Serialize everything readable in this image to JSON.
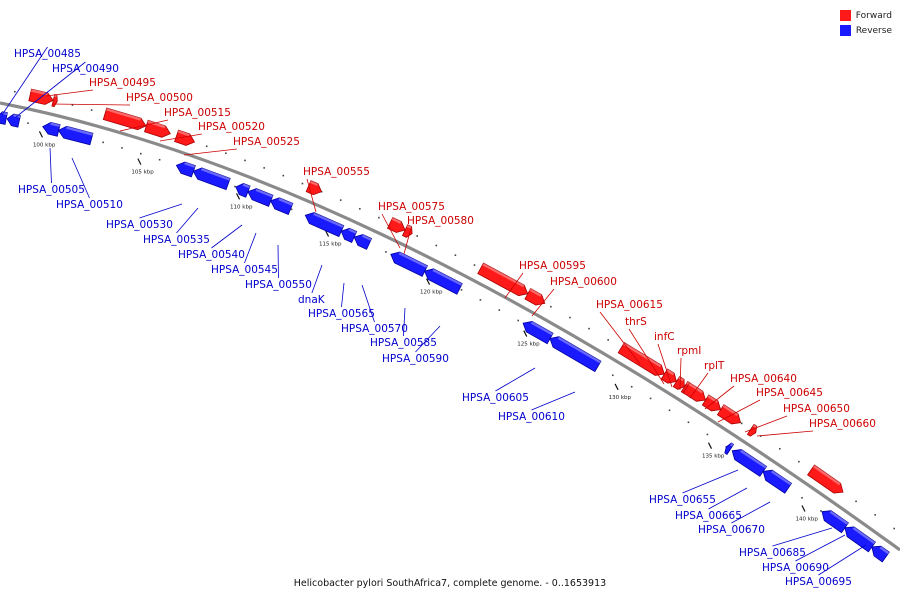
{
  "colors": {
    "forward": "#ff1a1a",
    "forward_dark": "#a80000",
    "reverse": "#1a1aff",
    "reverse_dark": "#0000a0",
    "backbone": "#8a8a8a"
  },
  "legend": {
    "forward_label": "Forward",
    "reverse_label": "Reverse"
  },
  "caption": "Helicobacter pylori SouthAfrica7, complete genome. - 0..1653913",
  "axis_ticks": [
    "100 kbp",
    "105 kbp",
    "110 kbp",
    "115 kbp",
    "120 kbp",
    "125 kbp",
    "130 kbp",
    "135 kbp",
    "140 kbp"
  ],
  "genes": [
    {
      "name": "HPSA_00485",
      "strand": "reverse"
    },
    {
      "name": "HPSA_00490",
      "strand": "reverse"
    },
    {
      "name": "HPSA_00495",
      "strand": "forward"
    },
    {
      "name": "HPSA_00500",
      "strand": "forward"
    },
    {
      "name": "HPSA_00515",
      "strand": "forward"
    },
    {
      "name": "HPSA_00520",
      "strand": "forward"
    },
    {
      "name": "HPSA_00525",
      "strand": "forward"
    },
    {
      "name": "HPSA_00505",
      "strand": "reverse"
    },
    {
      "name": "HPSA_00510",
      "strand": "reverse"
    },
    {
      "name": "HPSA_00555",
      "strand": "forward"
    },
    {
      "name": "HPSA_00530",
      "strand": "reverse"
    },
    {
      "name": "HPSA_00535",
      "strand": "reverse"
    },
    {
      "name": "HPSA_00575",
      "strand": "forward"
    },
    {
      "name": "HPSA_00580",
      "strand": "forward"
    },
    {
      "name": "HPSA_00540",
      "strand": "reverse"
    },
    {
      "name": "HPSA_00545",
      "strand": "reverse"
    },
    {
      "name": "HPSA_00550",
      "strand": "reverse"
    },
    {
      "name": "HPSA_00595",
      "strand": "forward"
    },
    {
      "name": "dnaK",
      "strand": "reverse"
    },
    {
      "name": "HPSA_00600",
      "strand": "forward"
    },
    {
      "name": "HPSA_00565",
      "strand": "reverse"
    },
    {
      "name": "HPSA_00570",
      "strand": "reverse"
    },
    {
      "name": "HPSA_00615",
      "strand": "forward"
    },
    {
      "name": "HPSA_00585",
      "strand": "reverse"
    },
    {
      "name": "thrS",
      "strand": "forward"
    },
    {
      "name": "HPSA_00590",
      "strand": "reverse"
    },
    {
      "name": "infC",
      "strand": "forward"
    },
    {
      "name": "rpmI",
      "strand": "forward"
    },
    {
      "name": "rplT",
      "strand": "forward"
    },
    {
      "name": "HPSA_00640",
      "strand": "forward"
    },
    {
      "name": "HPSA_00605",
      "strand": "reverse"
    },
    {
      "name": "HPSA_00645",
      "strand": "forward"
    },
    {
      "name": "HPSA_00610",
      "strand": "reverse"
    },
    {
      "name": "HPSA_00650",
      "strand": "forward"
    },
    {
      "name": "HPSA_00660",
      "strand": "forward"
    },
    {
      "name": "HPSA_00655",
      "strand": "reverse"
    },
    {
      "name": "HPSA_00665",
      "strand": "reverse"
    },
    {
      "name": "HPSA_00670",
      "strand": "reverse"
    },
    {
      "name": "HPSA_00685",
      "strand": "reverse"
    },
    {
      "name": "HPSA_00690",
      "strand": "reverse"
    },
    {
      "name": "HPSA_00695",
      "strand": "reverse"
    }
  ]
}
